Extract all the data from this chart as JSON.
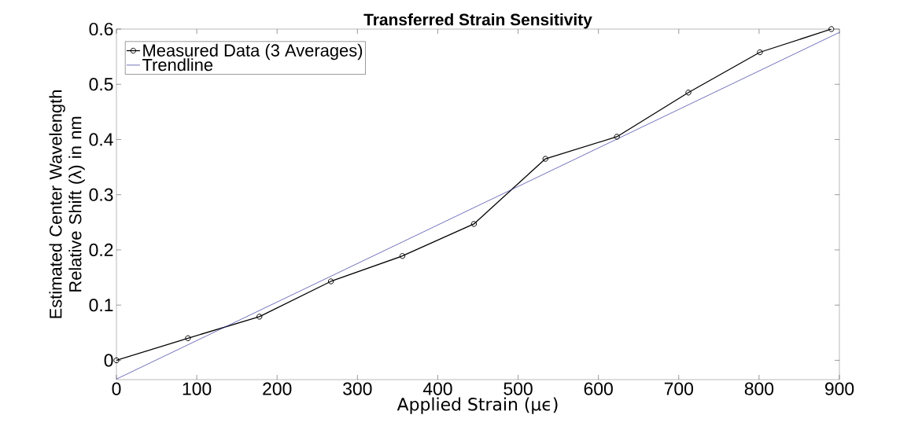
{
  "chart_data": {
    "type": "line",
    "title": "Transferred Strain Sensitivity",
    "xlabel": "Applied Strain (μϵ)",
    "ylabel": "Estimated Center Wavelength Relative Shift (λ) in nm",
    "xlim": [
      0,
      900
    ],
    "ylim": [
      -0.035,
      0.6
    ],
    "xticks": [
      0,
      100,
      200,
      300,
      400,
      500,
      600,
      700,
      800,
      900
    ],
    "yticks": [
      0,
      0.1,
      0.2,
      0.3,
      0.4,
      0.5,
      0.6
    ],
    "legend": "top left",
    "series": [
      {
        "name": "Measured Data (3 Averages)",
        "color": "#000000",
        "marker": "circle",
        "x": [
          0,
          89,
          178,
          267,
          356,
          445,
          534,
          623,
          712,
          801,
          890
        ],
        "values": [
          0.0,
          0.04,
          0.079,
          0.143,
          0.189,
          0.247,
          0.365,
          0.405,
          0.485,
          0.558,
          0.6
        ]
      },
      {
        "name": "Trendline",
        "color": "#3333a0",
        "marker": "none",
        "x": [
          0,
          900
        ],
        "values": [
          -0.034,
          0.594
        ]
      }
    ]
  }
}
